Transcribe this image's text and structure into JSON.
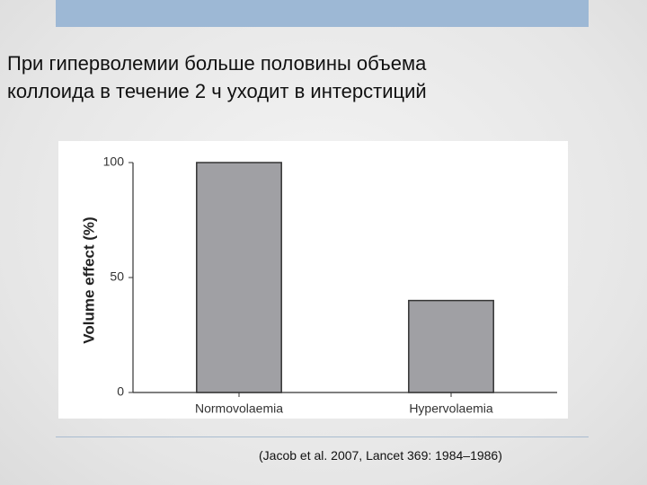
{
  "heading": [
    "При гиперволемии больше половины объема",
    "коллоида в течение 2 ч уходит в интерстиций"
  ],
  "citation": "(Jacob et al. 2007, Lancet 369: 1984–1986)",
  "chart_data": {
    "type": "bar",
    "y_label": "Volume effect (%)",
    "categories": [
      "Normovolaemia",
      "Hypervolaemia"
    ],
    "values": [
      100,
      40
    ],
    "color": "#a0a0a4",
    "ylim": [
      0,
      100
    ],
    "yticks": [
      0,
      50,
      100
    ],
    "grid": false
  }
}
